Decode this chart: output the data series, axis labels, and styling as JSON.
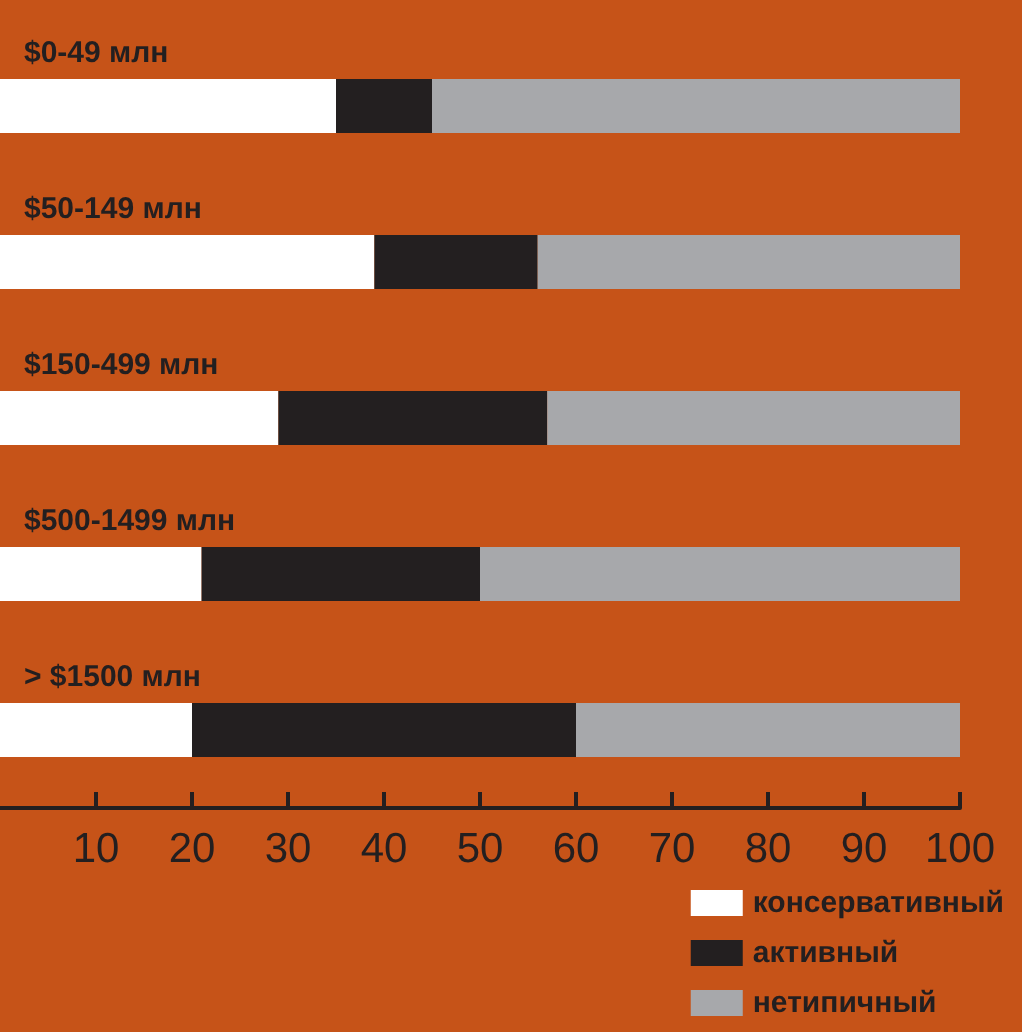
{
  "chart_data": {
    "type": "bar",
    "orientation": "horizontal",
    "stacked": true,
    "categories": [
      "$0-49 млн",
      "$50-149 млн",
      "$150-499 млн",
      "$500-1499 млн",
      "> $1500 млн"
    ],
    "series": [
      {
        "name": "консервативный",
        "color": "#ffffff",
        "values": [
          35,
          39,
          29,
          21,
          20
        ]
      },
      {
        "name": "активный",
        "color": "#231f20",
        "values": [
          10,
          17,
          28,
          29,
          40
        ]
      },
      {
        "name": "нетипичный",
        "color": "#a7a8ab",
        "values": [
          55,
          44,
          43,
          50,
          40
        ]
      }
    ],
    "xlim": [
      0,
      100
    ],
    "xticks": [
      10,
      20,
      30,
      40,
      50,
      60,
      70,
      80,
      90,
      100
    ],
    "grid": false,
    "legend": "bottom right"
  }
}
